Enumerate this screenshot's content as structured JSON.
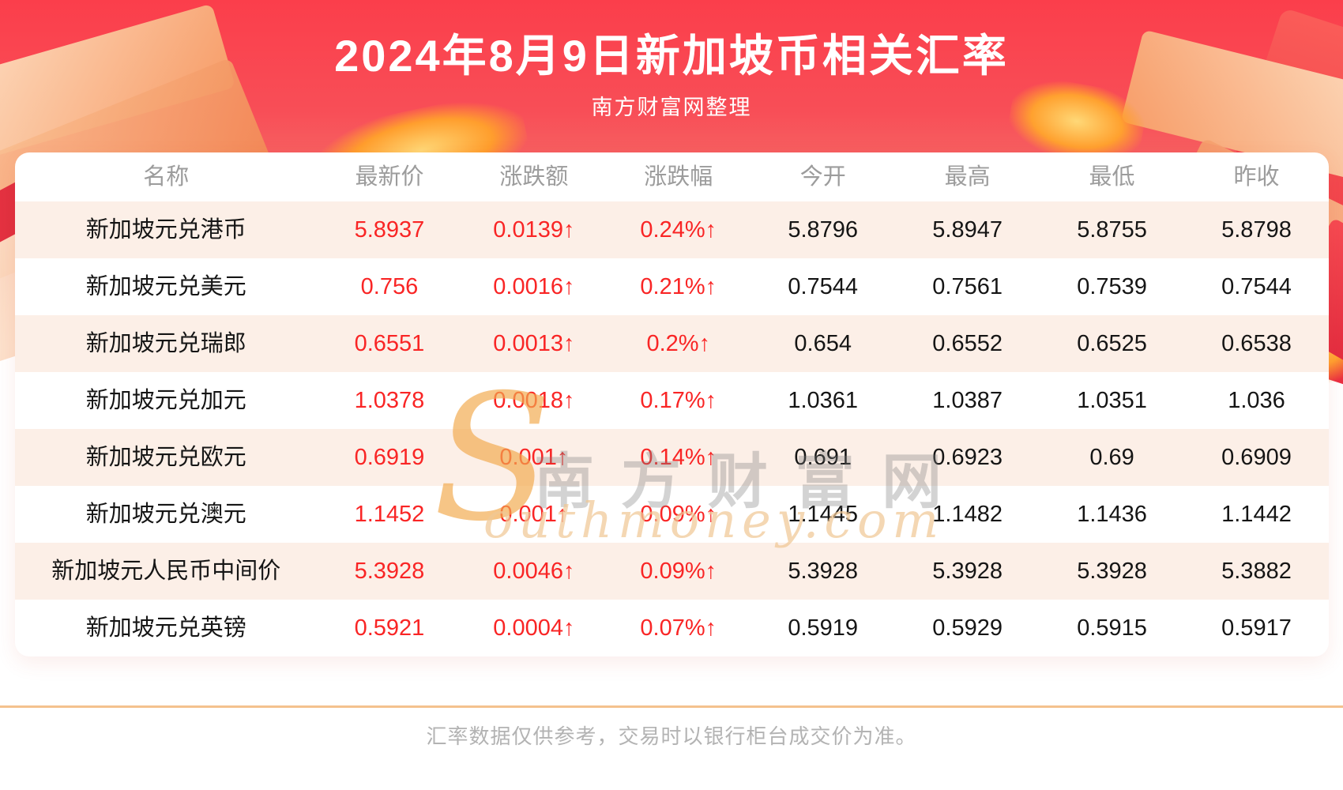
{
  "banner": {
    "title": "2024年8月9日新加坡币相关汇率",
    "subtitle": "南方财富网整理"
  },
  "chart_data": {
    "type": "table",
    "title": "2024年8月9日新加坡币相关汇率",
    "columns": [
      "名称",
      "最新价",
      "涨跌额",
      "涨跌幅",
      "今开",
      "最高",
      "最低",
      "昨收"
    ],
    "rows": [
      [
        "新加坡元兑港币",
        "5.8937",
        "0.0139↑",
        "0.24%↑",
        "5.8796",
        "5.8947",
        "5.8755",
        "5.8798"
      ],
      [
        "新加坡元兑美元",
        "0.756",
        "0.0016↑",
        "0.21%↑",
        "0.7544",
        "0.7561",
        "0.7539",
        "0.7544"
      ],
      [
        "新加坡元兑瑞郎",
        "0.6551",
        "0.0013↑",
        "0.2%↑",
        "0.654",
        "0.6552",
        "0.6525",
        "0.6538"
      ],
      [
        "新加坡元兑加元",
        "1.0378",
        "0.0018↑",
        "0.17%↑",
        "1.0361",
        "1.0387",
        "1.0351",
        "1.036"
      ],
      [
        "新加坡元兑欧元",
        "0.6919",
        "0.001↑",
        "0.14%↑",
        "0.691",
        "0.6923",
        "0.69",
        "0.6909"
      ],
      [
        "新加坡元兑澳元",
        "1.1452",
        "0.001↑",
        "0.09%↑",
        "1.1445",
        "1.1482",
        "1.1436",
        "1.1442"
      ],
      [
        "新加坡元人民币中间价",
        "5.3928",
        "0.0046↑",
        "0.09%↑",
        "5.3928",
        "5.3928",
        "5.3928",
        "5.3882"
      ],
      [
        "新加坡元兑英镑",
        "0.5921",
        "0.0004↑",
        "0.07%↑",
        "0.5919",
        "0.5929",
        "0.5915",
        "0.5917"
      ]
    ],
    "red_value_columns": [
      1,
      2,
      3
    ]
  },
  "watermark": {
    "s_glyph": "S",
    "cn": "南方财富网",
    "en": "outhmoney.com"
  },
  "footer": {
    "disclaimer": "汇率数据仅供参考，交易时以银行柜台成交价为准。"
  },
  "colors": {
    "banner_red": "#f8454f",
    "value_red": "#f92525",
    "row_stripe": "#fcefe7",
    "divider": "#f4c28e",
    "header_gray": "#9c9c9c"
  }
}
